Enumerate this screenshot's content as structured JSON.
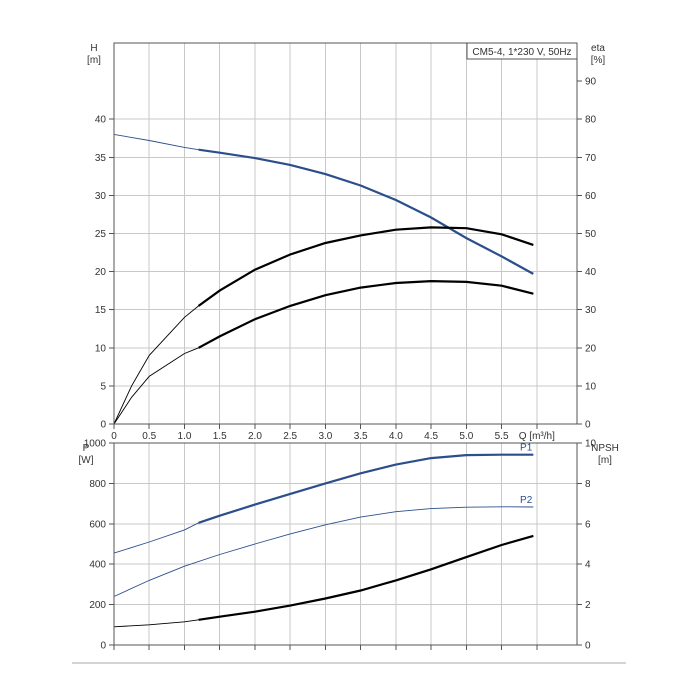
{
  "chart_data": [
    {
      "type": "line",
      "panel": "head-efficiency",
      "title": "CM5-4, 1*230 V, 50Hz",
      "xlabel": "Q [m³/h]",
      "x_ticks": [
        "0",
        "0.5",
        "1.0",
        "1.5",
        "2.0",
        "2.5",
        "3.0",
        "3.5",
        "4.0",
        "4.5",
        "5.0",
        "5.5",
        "Q [m³/h]"
      ],
      "xlim": [
        0,
        6.5
      ],
      "y_left": {
        "label_line1": "H",
        "label_line2": "[m]",
        "lim": [
          0,
          50
        ],
        "ticks": [
          "0",
          "5",
          "10",
          "15",
          "20",
          "25",
          "30",
          "35",
          "40"
        ]
      },
      "y_right": {
        "label_line1": "eta",
        "label_line2": "[%]",
        "lim": [
          0,
          100
        ],
        "ticks": [
          "0",
          "10",
          "20",
          "30",
          "40",
          "50",
          "60",
          "70",
          "80",
          "90"
        ]
      },
      "grid": true,
      "series": [
        {
          "axis": "left",
          "color": "#2c4f8c",
          "x": [
            0,
            0.5,
            1.0,
            1.2,
            1.5,
            2.0,
            2.5,
            3.0,
            3.5,
            4.0,
            4.5,
            5.0,
            5.5,
            5.95
          ],
          "y": [
            38,
            37.2,
            36.3,
            36.0,
            35.6,
            34.9,
            34.0,
            32.8,
            31.3,
            29.4,
            27.1,
            24.4,
            22.0,
            19.7
          ]
        },
        {
          "axis": "right",
          "color": "#000000",
          "x": [
            0,
            0.25,
            0.5,
            1.0,
            1.2,
            1.5,
            2.0,
            2.5,
            3.0,
            3.5,
            4.0,
            4.5,
            5.0,
            5.5,
            5.95
          ],
          "y": [
            0,
            10,
            18,
            28,
            31,
            35,
            40.5,
            44.5,
            47.5,
            49.5,
            51,
            51.6,
            51.4,
            49.8,
            47
          ]
        },
        {
          "axis": "right",
          "color": "#000000",
          "x": [
            0,
            0.25,
            0.5,
            1.0,
            1.2,
            1.5,
            2.0,
            2.5,
            3.0,
            3.5,
            4.0,
            4.5,
            5.0,
            5.5,
            5.95
          ],
          "y": [
            0,
            7,
            12.5,
            18.5,
            20,
            23,
            27.5,
            31,
            33.8,
            35.8,
            37,
            37.5,
            37.3,
            36.3,
            34.2
          ]
        }
      ]
    },
    {
      "type": "line",
      "panel": "power-npsh",
      "xlim": [
        0,
        6.5
      ],
      "y_left": {
        "label_line1": "P",
        "label_line2": "[W]",
        "lim": [
          0,
          1000
        ],
        "ticks": [
          "0",
          "200",
          "400",
          "600",
          "800",
          "1000"
        ]
      },
      "y_right": {
        "label_line1": "NPSH",
        "label_line2": "[m]",
        "lim": [
          0,
          10
        ],
        "ticks": [
          "0",
          "2",
          "4",
          "6",
          "8",
          "10"
        ]
      },
      "grid": true,
      "series": [
        {
          "name": "P1",
          "axis": "left",
          "color": "#2c4f8c",
          "x": [
            0,
            0.5,
            1.0,
            1.2,
            1.5,
            2.0,
            2.5,
            3.0,
            3.5,
            4.0,
            4.5,
            5.0,
            5.5,
            5.95
          ],
          "y": [
            455,
            510,
            570,
            605,
            640,
            695,
            748,
            800,
            850,
            893,
            925,
            940,
            942,
            942
          ]
        },
        {
          "name": "P2",
          "axis": "left",
          "color": "#2c4f8c",
          "x": [
            0,
            0.5,
            1.0,
            1.5,
            2.0,
            2.5,
            3.0,
            3.5,
            4.0,
            4.5,
            5.0,
            5.5,
            5.95
          ],
          "y": [
            240,
            320,
            390,
            448,
            500,
            550,
            595,
            633,
            660,
            675,
            682,
            684,
            683
          ]
        },
        {
          "axis": "right",
          "color": "#000000",
          "x": [
            0,
            0.5,
            1.0,
            1.2,
            1.5,
            2.0,
            2.5,
            3.0,
            3.5,
            4.0,
            4.5,
            5.0,
            5.5,
            5.95
          ],
          "y": [
            0.9,
            1.0,
            1.15,
            1.25,
            1.4,
            1.65,
            1.95,
            2.3,
            2.7,
            3.2,
            3.75,
            4.35,
            4.95,
            5.4
          ]
        }
      ]
    }
  ]
}
